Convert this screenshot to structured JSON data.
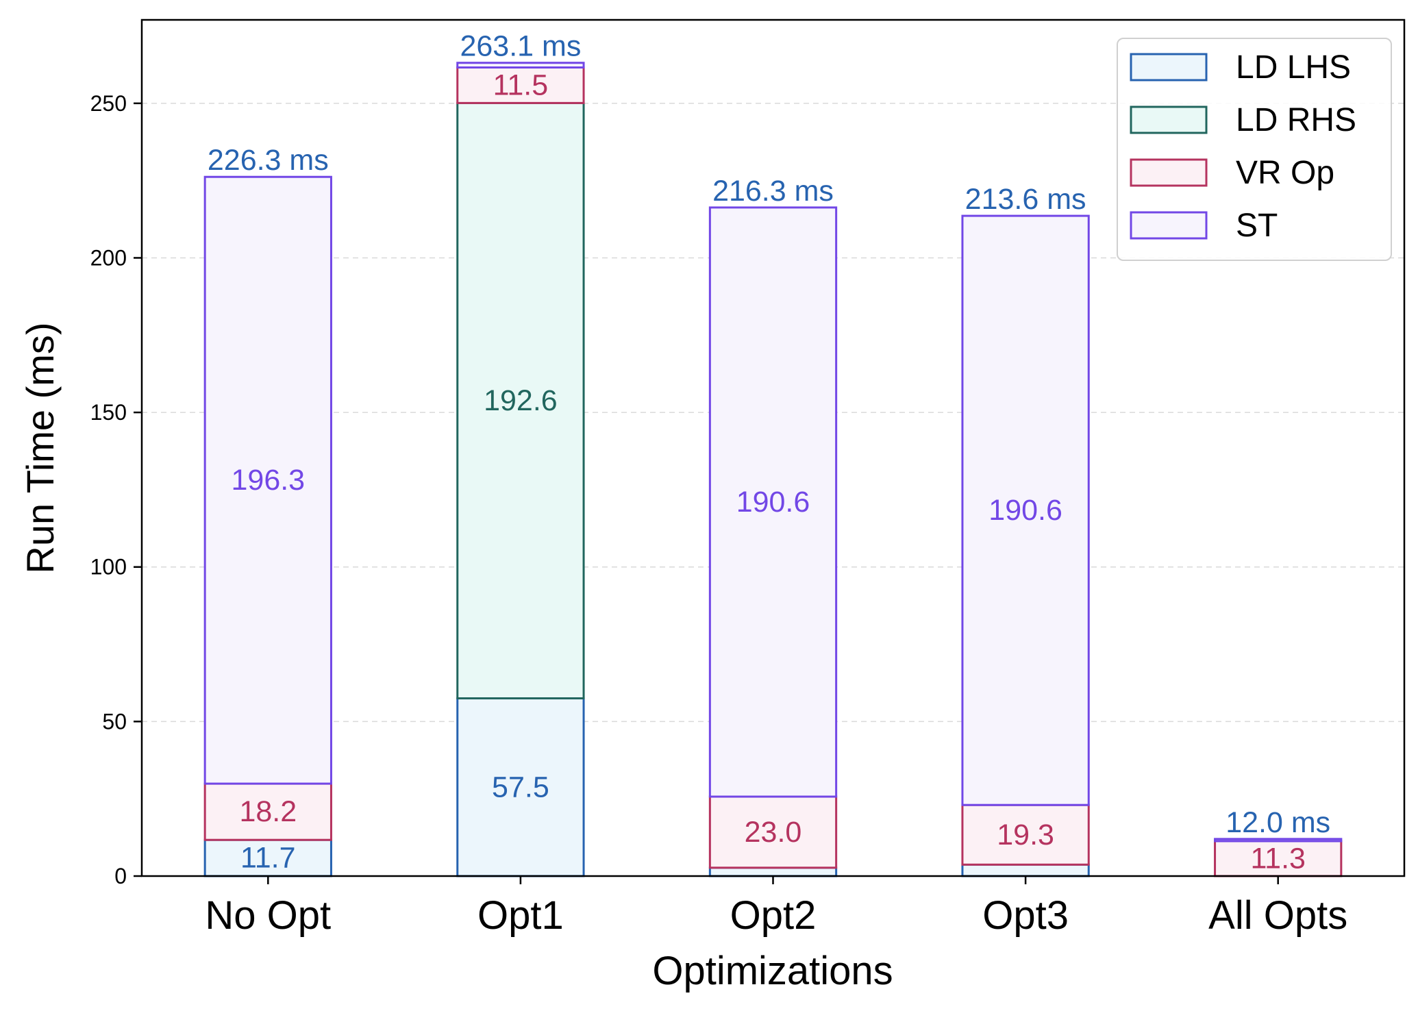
{
  "chart_data": {
    "type": "bar",
    "stacked": true,
    "categories": [
      "No Opt",
      "Opt1",
      "Opt2",
      "Opt3",
      "All Opts"
    ],
    "series": [
      {
        "name": "LD LHS",
        "values": [
          11.7,
          57.5,
          2.7,
          3.7,
          0.0
        ],
        "labels": [
          "11.7",
          "57.5",
          "",
          "",
          ""
        ]
      },
      {
        "name": "LD RHS",
        "values": [
          0.0,
          192.6,
          0.0,
          0.0,
          0.0
        ],
        "labels": [
          "",
          "192.6",
          "",
          "",
          ""
        ]
      },
      {
        "name": "VR Op",
        "values": [
          18.2,
          11.5,
          23.0,
          19.3,
          11.3
        ],
        "labels": [
          "18.2",
          "11.5",
          "23.0",
          "19.3",
          "11.3"
        ]
      },
      {
        "name": "ST",
        "values": [
          196.3,
          1.5,
          190.6,
          190.6,
          0.7
        ],
        "labels": [
          "196.3",
          "",
          "190.6",
          "190.6",
          ""
        ]
      }
    ],
    "totals": [
      "226.3 ms",
      "263.1 ms",
      "216.3 ms",
      "213.6 ms",
      "12.0 ms"
    ],
    "total_values": [
      226.3,
      263.1,
      216.3,
      213.6,
      12.0
    ],
    "xlabel": "Optimizations",
    "ylabel": "Run Time (ms)",
    "ylim": [
      0,
      277
    ],
    "yticks": [
      0,
      50,
      100,
      150,
      200,
      250
    ],
    "grid": "horizontal dashed",
    "legend_position": "top-right",
    "colors": {
      "LD LHS": {
        "edge": "#2763b0",
        "fill": "#ecf6fc"
      },
      "LD RHS": {
        "edge": "#21665e",
        "fill": "#e9f9f6"
      },
      "VR Op": {
        "edge": "#b5335f",
        "fill": "#fcf1f5"
      },
      "ST": {
        "edge": "#7247e6",
        "fill": "#f7f4fd"
      },
      "total": "#2763b0"
    }
  }
}
